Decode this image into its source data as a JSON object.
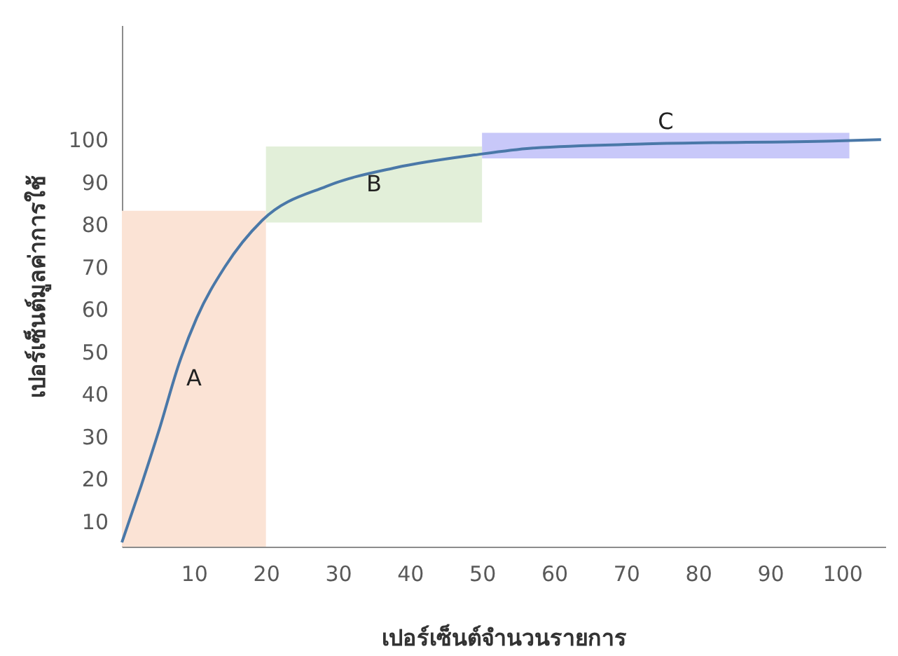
{
  "chart_data": {
    "type": "line",
    "xlabel": "เปอร์เซ็นต์จำนวนรายการ",
    "ylabel": "เปอร์เซ็นต์มูลค่าการใช้",
    "x": [
      0,
      2.7,
      5.2,
      7.9,
      10.4,
      14.3,
      19.5,
      28.4,
      38,
      49,
      56.8,
      72.8,
      98.6,
      105.4
    ],
    "series": [
      {
        "color": "#4a78a8",
        "values": [
          5,
          18.5,
          31.7,
          47,
          58,
          70,
          81,
          89,
          93.4,
          96.4,
          98,
          99,
          99.7,
          100
        ]
      }
    ],
    "xlim": [
      0,
      106
    ],
    "xticks": [
      10,
      20,
      30,
      40,
      50,
      60,
      70,
      80,
      90,
      100
    ],
    "ylim": [
      4,
      127
    ],
    "yticks": [
      10,
      20,
      30,
      40,
      50,
      60,
      70,
      80,
      90,
      100
    ],
    "bands": [
      {
        "axis": "x",
        "from": 0,
        "to": 20,
        "label": "A",
        "color": "#fbe3d5"
      },
      {
        "axis": "x",
        "from": 20,
        "to": 50,
        "label": "B",
        "color": "#e2efd9"
      },
      {
        "axis": "x",
        "from": 50,
        "to": 101,
        "label": "C",
        "color": "#c8c8f9"
      }
    ],
    "grid": false,
    "marker": "none",
    "line_style": "solid"
  }
}
